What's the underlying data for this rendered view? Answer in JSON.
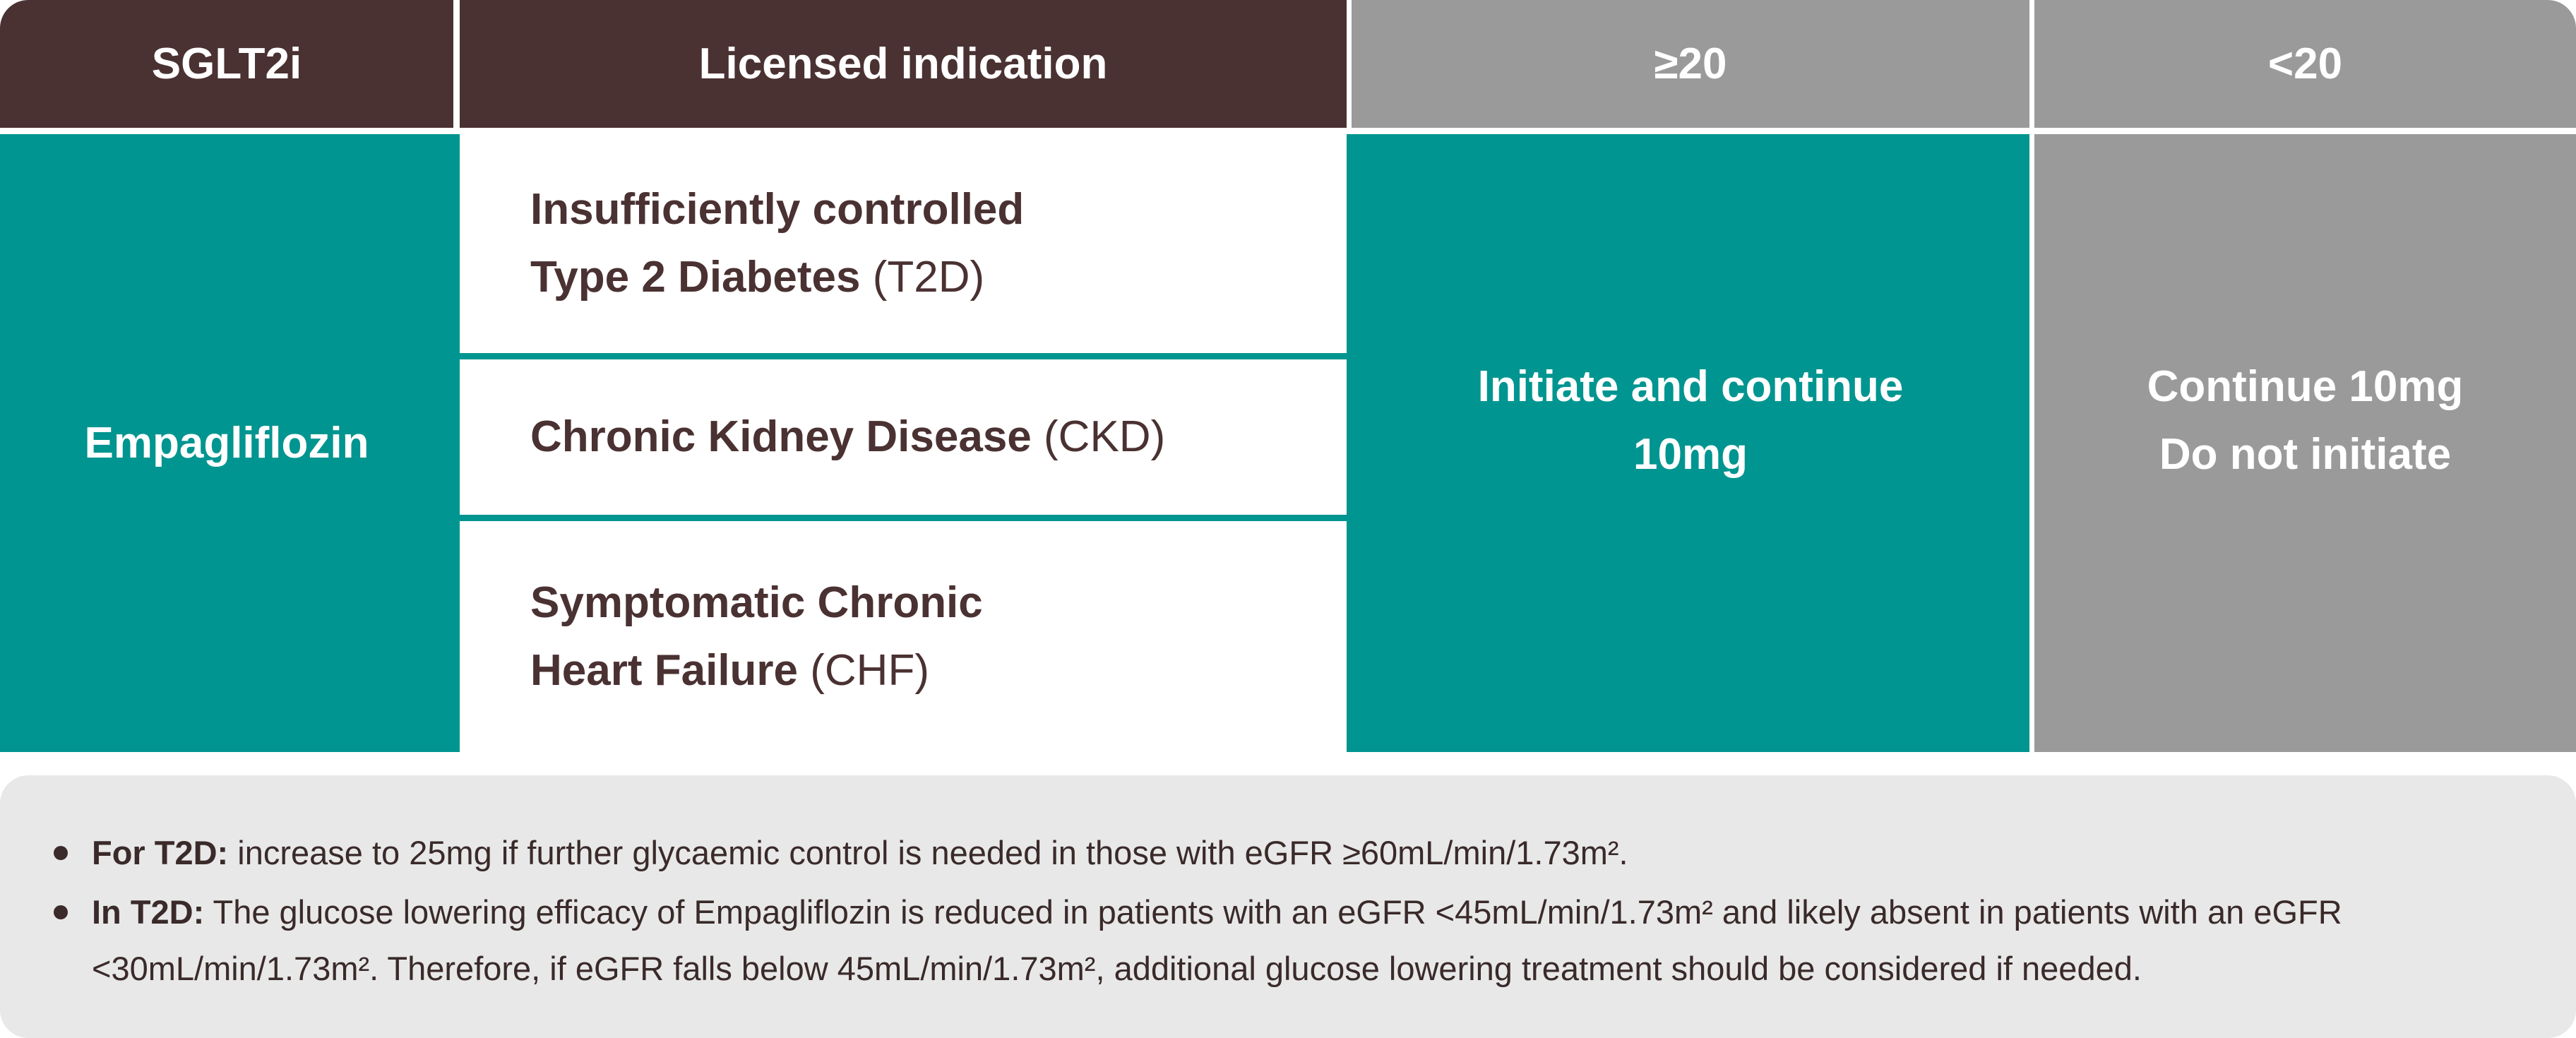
{
  "header": {
    "col1": "SGLT2i",
    "col2": "Licensed indication",
    "col3": "≥20",
    "col4": "<20"
  },
  "drug": "Empagliflozin",
  "indications": [
    {
      "bold_line1": "Insufficiently controlled",
      "bold_line2": "Type 2 Diabetes",
      "abbr": " (T2D)"
    },
    {
      "bold_line1": "Chronic Kidney Disease",
      "abbr": " (CKD)"
    },
    {
      "bold_line1": "Symptomatic Chronic",
      "bold_line2": "Heart Failure",
      "abbr": " (CHF)"
    }
  ],
  "egfr_high": {
    "line1": "Initiate and continue",
    "line2": "10mg"
  },
  "egfr_low": {
    "line1": "Continue 10mg",
    "line2": "Do not initiate"
  },
  "notes": [
    {
      "label": "For T2D:",
      "text": " increase to 25mg if further glycaemic control is needed in those with eGFR ≥60mL/min/1.73m²."
    },
    {
      "label": "In T2D:",
      "text": " The glucose lowering efficacy of Empagliflozin is reduced in patients with an eGFR <45mL/min/1.73m² and likely absent in patients with an eGFR <30mL/min/1.73m². Therefore, if eGFR falls below 45mL/min/1.73m², additional glucose lowering treatment should be considered if needed."
    }
  ],
  "colors": {
    "brown": "#4a3132",
    "teal": "#009590",
    "grey": "#9a9a9a",
    "note_bg": "#e8e8e8"
  }
}
